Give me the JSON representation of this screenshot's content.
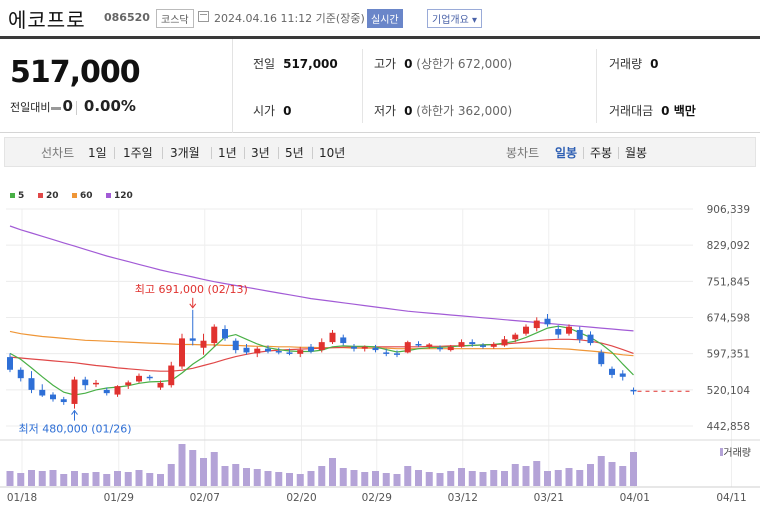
{
  "header": {
    "name": "에코프로",
    "code": "086520",
    "market": "코스닥",
    "datetime": "2024.04.16 11:12 기준(장중)",
    "realtime_label": "실시간",
    "info_label": "기업개요 ▾"
  },
  "summary": {
    "price": "517,000",
    "change_label": "전일대비",
    "change_value": "0",
    "change_pct": "0.00%",
    "prev_label": "전일",
    "prev_value": "517,000",
    "high_label": "고가",
    "high_value": "0",
    "high_sub": "(상한가 672,000)",
    "volume_label": "거래량",
    "volume_value": "0",
    "open_label": "시가",
    "open_value": "0",
    "low_label": "저가",
    "low_value": "0",
    "low_sub": "(하한가 362,000)",
    "amount_label": "거래대금",
    "amount_value": "0 백만"
  },
  "tabs": {
    "line_label": "선차트",
    "line_items": [
      "1일",
      "1주일",
      "3개월",
      "1년",
      "3년",
      "5년",
      "10년"
    ],
    "candle_label": "봉차트",
    "candle_items": [
      "일봉",
      "주봉",
      "월봉"
    ],
    "active_line": "3개월",
    "active_candle": "일봉"
  },
  "colors": {
    "up": "#e0322f",
    "down": "#2e6fd6",
    "ma5": "#49b046",
    "ma20": "#e04848",
    "ma60": "#ef9637",
    "ma120": "#a25bd6",
    "volume": "#b4a3d7"
  },
  "chart_data": {
    "type": "candlestick",
    "legend": [
      "5",
      "20",
      "60",
      "120"
    ],
    "y_ticks": [
      "906,339",
      "829,092",
      "751,845",
      "674,598",
      "597,351",
      "520,104",
      "442,858"
    ],
    "x_ticks": [
      "01/18",
      "01/29",
      "02/07",
      "02/20",
      "02/29",
      "03/12",
      "03/21",
      "04/01",
      "04/11"
    ],
    "max_note": "최고 691,000 (02/13)",
    "min_note": "최저 480,000 (01/26)",
    "volume_label": "거래량",
    "candles": [
      {
        "o": 590000,
        "h": 598000,
        "l": 558000,
        "c": 563000
      },
      {
        "o": 563000,
        "h": 568000,
        "l": 538000,
        "c": 545000
      },
      {
        "o": 545000,
        "h": 560000,
        "l": 513000,
        "c": 520000
      },
      {
        "o": 520000,
        "h": 532000,
        "l": 505000,
        "c": 508000
      },
      {
        "o": 510000,
        "h": 515000,
        "l": 495000,
        "c": 500000
      },
      {
        "o": 500000,
        "h": 505000,
        "l": 488000,
        "c": 494000
      },
      {
        "o": 490000,
        "h": 548000,
        "l": 480000,
        "c": 542000
      },
      {
        "o": 542000,
        "h": 548000,
        "l": 520000,
        "c": 530000
      },
      {
        "o": 532000,
        "h": 541000,
        "l": 526000,
        "c": 535000
      },
      {
        "o": 520000,
        "h": 525000,
        "l": 508000,
        "c": 513000
      },
      {
        "o": 510000,
        "h": 530000,
        "l": 505000,
        "c": 528000
      },
      {
        "o": 530000,
        "h": 540000,
        "l": 522000,
        "c": 536000
      },
      {
        "o": 538000,
        "h": 555000,
        "l": 535000,
        "c": 550000
      },
      {
        "o": 548000,
        "h": 552000,
        "l": 540000,
        "c": 545000
      },
      {
        "o": 525000,
        "h": 540000,
        "l": 520000,
        "c": 535000
      },
      {
        "o": 530000,
        "h": 580000,
        "l": 525000,
        "c": 572000
      },
      {
        "o": 570000,
        "h": 640000,
        "l": 565000,
        "c": 630000
      },
      {
        "o": 630000,
        "h": 691000,
        "l": 615000,
        "c": 625000
      },
      {
        "o": 610000,
        "h": 640000,
        "l": 595000,
        "c": 625000
      },
      {
        "o": 620000,
        "h": 660000,
        "l": 612000,
        "c": 655000
      },
      {
        "o": 650000,
        "h": 658000,
        "l": 625000,
        "c": 630000
      },
      {
        "o": 625000,
        "h": 630000,
        "l": 598000,
        "c": 605000
      },
      {
        "o": 610000,
        "h": 618000,
        "l": 595000,
        "c": 600000
      },
      {
        "o": 598000,
        "h": 612000,
        "l": 590000,
        "c": 608000
      },
      {
        "o": 608000,
        "h": 615000,
        "l": 598000,
        "c": 602000
      },
      {
        "o": 603000,
        "h": 610000,
        "l": 596000,
        "c": 600000
      },
      {
        "o": 600000,
        "h": 608000,
        "l": 594000,
        "c": 598000
      },
      {
        "o": 597000,
        "h": 612000,
        "l": 590000,
        "c": 605000
      },
      {
        "o": 612000,
        "h": 618000,
        "l": 598000,
        "c": 602000
      },
      {
        "o": 605000,
        "h": 630000,
        "l": 600000,
        "c": 622000
      },
      {
        "o": 622000,
        "h": 648000,
        "l": 618000,
        "c": 642000
      },
      {
        "o": 632000,
        "h": 638000,
        "l": 615000,
        "c": 620000
      },
      {
        "o": 612000,
        "h": 618000,
        "l": 602000,
        "c": 608000
      },
      {
        "o": 608000,
        "h": 615000,
        "l": 602000,
        "c": 612000
      },
      {
        "o": 610000,
        "h": 616000,
        "l": 600000,
        "c": 605000
      },
      {
        "o": 600000,
        "h": 608000,
        "l": 592000,
        "c": 598000
      },
      {
        "o": 598000,
        "h": 604000,
        "l": 590000,
        "c": 595000
      },
      {
        "o": 600000,
        "h": 625000,
        "l": 598000,
        "c": 622000
      },
      {
        "o": 618000,
        "h": 624000,
        "l": 612000,
        "c": 615000
      },
      {
        "o": 612000,
        "h": 620000,
        "l": 608000,
        "c": 617000
      },
      {
        "o": 610000,
        "h": 615000,
        "l": 602000,
        "c": 608000
      },
      {
        "o": 605000,
        "h": 616000,
        "l": 602000,
        "c": 612000
      },
      {
        "o": 612000,
        "h": 628000,
        "l": 610000,
        "c": 622000
      },
      {
        "o": 622000,
        "h": 628000,
        "l": 612000,
        "c": 618000
      },
      {
        "o": 615000,
        "h": 620000,
        "l": 608000,
        "c": 612000
      },
      {
        "o": 612000,
        "h": 622000,
        "l": 608000,
        "c": 618000
      },
      {
        "o": 615000,
        "h": 635000,
        "l": 612000,
        "c": 628000
      },
      {
        "o": 628000,
        "h": 642000,
        "l": 622000,
        "c": 638000
      },
      {
        "o": 640000,
        "h": 660000,
        "l": 636000,
        "c": 655000
      },
      {
        "o": 652000,
        "h": 675000,
        "l": 645000,
        "c": 668000
      },
      {
        "o": 672000,
        "h": 682000,
        "l": 655000,
        "c": 660000
      },
      {
        "o": 650000,
        "h": 658000,
        "l": 630000,
        "c": 638000
      },
      {
        "o": 640000,
        "h": 660000,
        "l": 636000,
        "c": 655000
      },
      {
        "o": 648000,
        "h": 655000,
        "l": 620000,
        "c": 628000
      },
      {
        "o": 638000,
        "h": 645000,
        "l": 615000,
        "c": 620000
      },
      {
        "o": 600000,
        "h": 606000,
        "l": 570000,
        "c": 575000
      },
      {
        "o": 565000,
        "h": 570000,
        "l": 545000,
        "c": 552000
      },
      {
        "o": 555000,
        "h": 562000,
        "l": 540000,
        "c": 548000
      },
      {
        "o": 520000,
        "h": 525000,
        "l": 510000,
        "c": 517000
      }
    ],
    "volumes": [
      15,
      13,
      16,
      15,
      16,
      12,
      15,
      13,
      14,
      12,
      15,
      14,
      16,
      13,
      12,
      22,
      42,
      36,
      28,
      34,
      20,
      22,
      18,
      17,
      15,
      14,
      13,
      12,
      15,
      20,
      28,
      18,
      16,
      14,
      15,
      13,
      12,
      20,
      16,
      14,
      13,
      15,
      18,
      15,
      14,
      16,
      15,
      22,
      20,
      25,
      15,
      16,
      18,
      16,
      22,
      30,
      24,
      20,
      34
    ],
    "ma5": [
      598000,
      585000,
      567000,
      548000,
      530000,
      515000,
      509000,
      513000,
      520000,
      524000,
      526000,
      529000,
      534000,
      537000,
      538000,
      540000,
      556000,
      575000,
      590000,
      612000,
      633000,
      638000,
      628000,
      618000,
      610000,
      606000,
      603000,
      602000,
      602000,
      605000,
      612000,
      614000,
      613000,
      613000,
      612000,
      606000,
      601000,
      604000,
      608000,
      610000,
      611000,
      612000,
      614000,
      615000,
      616000,
      617000,
      620000,
      624000,
      632000,
      642000,
      652000,
      656000,
      652000,
      642000,
      632000,
      618000,
      600000,
      575000,
      552000
    ],
    "ma20": [
      590000,
      588000,
      586000,
      584000,
      582000,
      580000,
      578000,
      575000,
      572000,
      570000,
      567000,
      565000,
      563000,
      561000,
      560000,
      560000,
      562000,
      566000,
      572000,
      578000,
      585000,
      591000,
      596000,
      600000,
      603000,
      605000,
      606000,
      607000,
      608000,
      609000,
      610000,
      611000,
      612000,
      612000,
      612000,
      612000,
      612000,
      612000,
      612000,
      613000,
      613000,
      614000,
      614000,
      615000,
      616000,
      617000,
      618000,
      620000,
      622000,
      625000,
      627000,
      628000,
      628000,
      627000,
      624000,
      620000,
      614000,
      606000,
      598000
    ],
    "ma60": [
      645000,
      640000,
      637000,
      634000,
      632000,
      630000,
      628000,
      626000,
      625000,
      624000,
      623000,
      622000,
      621000,
      620000,
      619000,
      618000,
      617000,
      617000,
      616000,
      616000,
      615000,
      615000,
      614000,
      613000,
      613000,
      612000,
      612000,
      611000,
      611000,
      610000,
      610000,
      610000,
      609000,
      609000,
      609000,
      609000,
      608000,
      608000,
      608000,
      608000,
      608000,
      608000,
      608000,
      608000,
      608000,
      608000,
      608000,
      609000,
      609000,
      609000,
      609000,
      608000,
      607000,
      605000,
      603000,
      601000,
      598000,
      595000,
      593000
    ],
    "ma120": [
      870000,
      862000,
      855000,
      848000,
      841000,
      834000,
      827000,
      820000,
      813000,
      806000,
      800000,
      794000,
      788000,
      782000,
      776000,
      771000,
      766000,
      761000,
      756000,
      751000,
      747000,
      743000,
      739000,
      735000,
      731000,
      727000,
      723000,
      719000,
      715000,
      712000,
      709000,
      706000,
      703000,
      700000,
      697000,
      694000,
      691000,
      688000,
      686000,
      684000,
      682000,
      680000,
      678000,
      676000,
      674000,
      672000,
      670000,
      668000,
      666000,
      664000,
      662000,
      660000,
      658000,
      656000,
      654000,
      652000,
      650000,
      648000,
      646000
    ]
  }
}
